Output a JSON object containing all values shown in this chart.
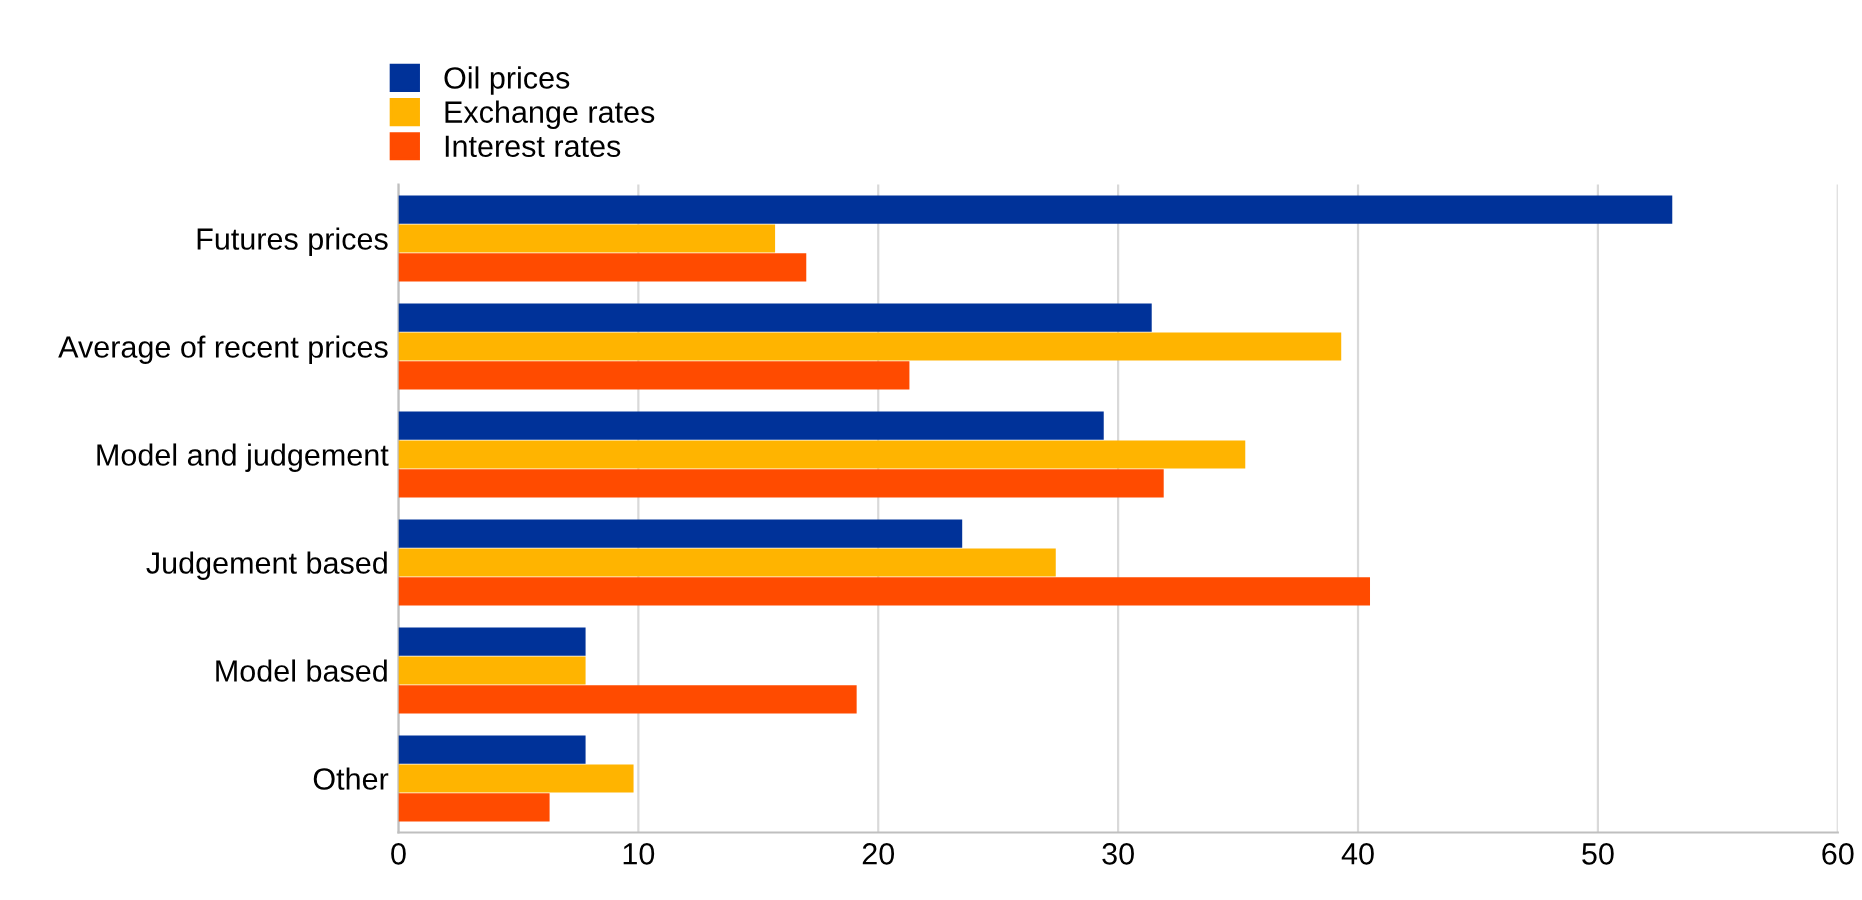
{
  "chart_data": {
    "type": "bar",
    "orientation": "horizontal",
    "categories": [
      "Futures prices",
      "Average of recent prices",
      "Model and judgement",
      "Judgement based",
      "Model based",
      "Other"
    ],
    "series": [
      {
        "name": "Oil prices",
        "color": "#003299",
        "values": [
          53.1,
          31.4,
          29.4,
          23.5,
          7.8,
          7.8
        ]
      },
      {
        "name": "Exchange rates",
        "color": "#ffb400",
        "values": [
          15.7,
          39.3,
          35.3,
          27.4,
          7.8,
          9.8
        ]
      },
      {
        "name": "Interest rates",
        "color": "#ff4b00",
        "values": [
          17.0,
          21.3,
          31.9,
          40.5,
          19.1,
          6.3
        ]
      }
    ],
    "xlim": [
      0,
      60
    ],
    "xticks": [
      0,
      10,
      20,
      30,
      40,
      50,
      60
    ],
    "grid": "x",
    "legend": "top left"
  }
}
